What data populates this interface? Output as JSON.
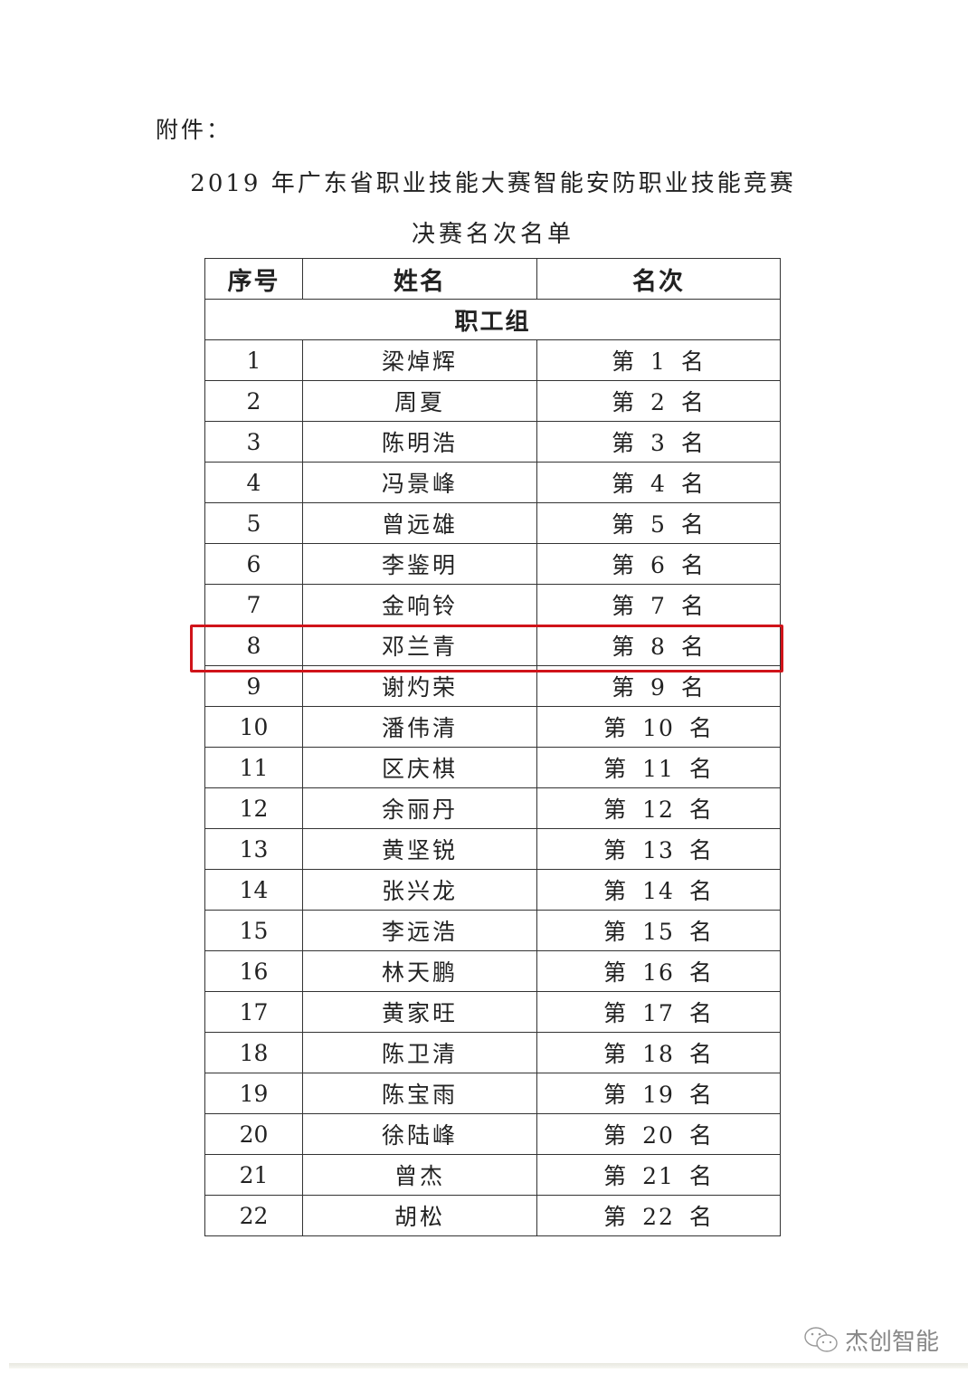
{
  "attachment_label": "附件：",
  "title_line1": "2019 年广东省职业技能大赛智能安防职业技能竞赛",
  "title_line2": "决赛名次名单",
  "table": {
    "headers": [
      "序号",
      "姓名",
      "名次"
    ],
    "group": "职工组",
    "rows": [
      {
        "no": "1",
        "name": "梁焯辉",
        "rank": "第 1 名"
      },
      {
        "no": "2",
        "name": "周夏",
        "rank": "第 2 名"
      },
      {
        "no": "3",
        "name": "陈明浩",
        "rank": "第 3 名"
      },
      {
        "no": "4",
        "name": "冯景峰",
        "rank": "第 4 名"
      },
      {
        "no": "5",
        "name": "曾远雄",
        "rank": "第 5 名"
      },
      {
        "no": "6",
        "name": "李鉴明",
        "rank": "第 6 名"
      },
      {
        "no": "7",
        "name": "金响铃",
        "rank": "第 7 名"
      },
      {
        "no": "8",
        "name": "邓兰青",
        "rank": "第 8 名"
      },
      {
        "no": "9",
        "name": "谢灼荣",
        "rank": "第 9 名"
      },
      {
        "no": "10",
        "name": "潘伟清",
        "rank": "第 10 名"
      },
      {
        "no": "11",
        "name": "区庆棋",
        "rank": "第 11 名"
      },
      {
        "no": "12",
        "name": "余丽丹",
        "rank": "第 12 名"
      },
      {
        "no": "13",
        "name": "黄坚锐",
        "rank": "第 13 名"
      },
      {
        "no": "14",
        "name": "张兴龙",
        "rank": "第 14 名"
      },
      {
        "no": "15",
        "name": "李远浩",
        "rank": "第 15 名"
      },
      {
        "no": "16",
        "name": "林天鹏",
        "rank": "第 16 名"
      },
      {
        "no": "17",
        "name": "黄家旺",
        "rank": "第 17 名"
      },
      {
        "no": "18",
        "name": "陈卫清",
        "rank": "第 18 名"
      },
      {
        "no": "19",
        "name": "陈宝雨",
        "rank": "第 19 名"
      },
      {
        "no": "20",
        "name": "徐陆峰",
        "rank": "第 20 名"
      },
      {
        "no": "21",
        "name": "曾杰",
        "rank": "第 21 名"
      },
      {
        "no": "22",
        "name": "胡松",
        "rank": "第 22 名"
      }
    ]
  },
  "highlight": {
    "row_no": "8",
    "color": "#d0141a"
  },
  "watermark": {
    "icon": "wechat-icon",
    "text": "杰创智能"
  }
}
